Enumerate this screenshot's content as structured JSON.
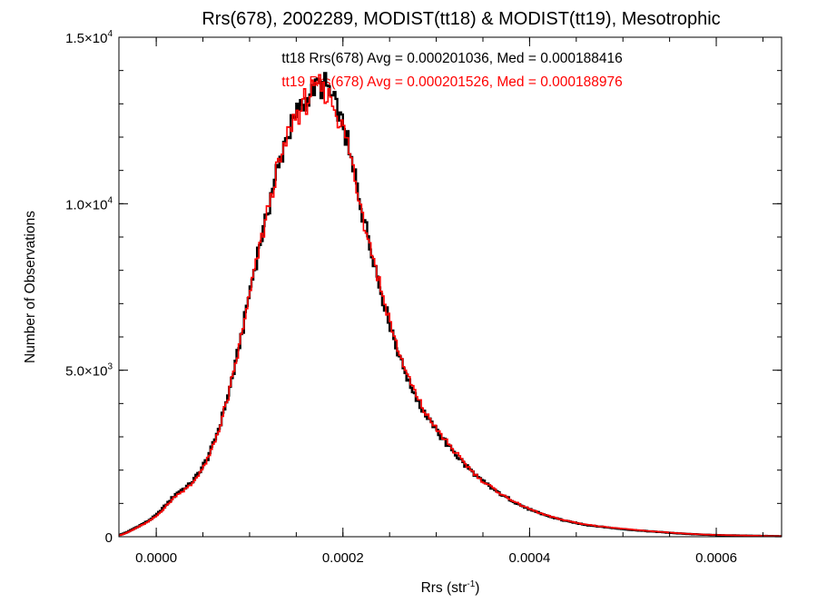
{
  "chart_data": {
    "type": "histogram",
    "title": "Rrs(678), 2002289, MODIST(tt18) & MODIST(tt19), Mesotrophic",
    "xlabel": "Rrs (str",
    "xlabel_sup": "-1",
    "xlabel_end": ")",
    "ylabel": "Number of Observations",
    "xlim": [
      -4e-05,
      0.00067
    ],
    "ylim": [
      0,
      15000
    ],
    "x_ticks": [
      0.0,
      0.0002,
      0.0004,
      0.0006
    ],
    "x_tick_labels": [
      "0.0000",
      "0.0002",
      "0.0004",
      "0.0006"
    ],
    "y_ticks": [
      0,
      5000,
      10000,
      15000
    ],
    "y_tick_labels": [
      {
        "base": "0",
        "exp": ""
      },
      {
        "base": "5.0×10",
        "exp": "3"
      },
      {
        "base": "1.0×10",
        "exp": "4"
      },
      {
        "base": "1.5×10",
        "exp": "4"
      }
    ],
    "grid": false,
    "bin_width": 2e-06,
    "annotations": [
      {
        "text": "tt18 Rrs(678) Avg = 0.000201036, Med = 0.000188416",
        "color": "#000000"
      },
      {
        "text": "tt19 Rrs(678) Avg = 0.000201526, Med = 0.000188976",
        "color": "#ff0000"
      }
    ],
    "series": [
      {
        "name": "tt18",
        "color": "#000000",
        "x": [
          -4e-05,
          -2e-05,
          0.0,
          2e-05,
          4e-05,
          6e-05,
          8e-05,
          0.0001,
          0.00012,
          0.00014,
          0.00016,
          0.00018,
          0.0002,
          0.00022,
          0.00024,
          0.00026,
          0.00028,
          0.0003,
          0.00032,
          0.00034,
          0.00036,
          0.00038,
          0.0004,
          0.00042,
          0.00044,
          0.00046,
          0.00048,
          0.0005,
          0.00052,
          0.00054,
          0.00056,
          0.00058,
          0.0006,
          0.00062,
          0.00064,
          0.00066,
          0.00067
        ],
        "values": [
          50,
          300,
          650,
          1250,
          1700,
          2700,
          4600,
          7300,
          9900,
          12000,
          13100,
          13550,
          12300,
          9900,
          7500,
          5500,
          4100,
          3200,
          2500,
          1900,
          1450,
          1100,
          820,
          620,
          470,
          360,
          290,
          230,
          180,
          140,
          100,
          70,
          50,
          40,
          30,
          20,
          15
        ]
      },
      {
        "name": "tt19",
        "color": "#ff0000",
        "x": [
          -4e-05,
          -2e-05,
          0.0,
          2e-05,
          4e-05,
          6e-05,
          8e-05,
          0.0001,
          0.00012,
          0.00014,
          0.00016,
          0.00018,
          0.0002,
          0.00022,
          0.00024,
          0.00026,
          0.00028,
          0.0003,
          0.00032,
          0.00034,
          0.00036,
          0.00038,
          0.0004,
          0.00042,
          0.00044,
          0.00046,
          0.00048,
          0.0005,
          0.00052,
          0.00054,
          0.00056,
          0.00058,
          0.0006,
          0.00062,
          0.00064,
          0.00066,
          0.00067
        ],
        "values": [
          40,
          280,
          620,
          1200,
          1650,
          2650,
          4550,
          7250,
          9850,
          11950,
          13050,
          13450,
          12250,
          9850,
          7550,
          5550,
          4150,
          3250,
          2550,
          1920,
          1470,
          1110,
          830,
          630,
          480,
          370,
          300,
          240,
          190,
          145,
          105,
          75,
          55,
          42,
          32,
          22,
          16
        ]
      }
    ]
  }
}
